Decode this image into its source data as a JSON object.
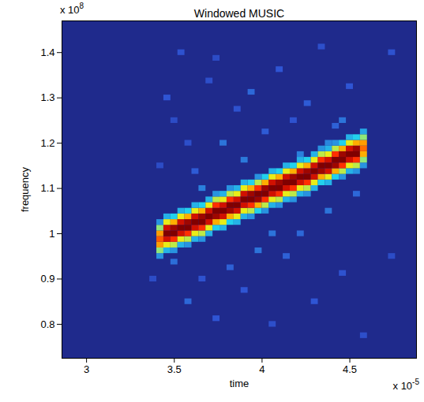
{
  "chart_data": {
    "type": "heatmap",
    "title": "Windowed MUSIC",
    "x_label": "time",
    "y_label": "frequency",
    "x_multiplier": {
      "text": "x 10",
      "superscript": "-5"
    },
    "y_multiplier": {
      "text": "x 10",
      "superscript": "8"
    },
    "xlim": [
      2.86,
      4.88
    ],
    "ylim": [
      0.725,
      1.47
    ],
    "xticks": [
      3,
      3.5,
      4,
      4.5
    ],
    "yticks": [
      0.8,
      0.9,
      1,
      1.1,
      1.2,
      1.3,
      1.4
    ],
    "heatmap": {
      "time_step": 0.04,
      "frequency_step": 0.0125,
      "zlim": [
        0,
        1
      ],
      "columns": [
        {
          "t": 3.46,
          "f_start": 1.3,
          "power": [
            0.15
          ]
        },
        {
          "t": 3.5,
          "f_start": 1.25,
          "power": [
            0.12
          ]
        },
        {
          "t": 3.54,
          "f_start": 1.4,
          "power": [
            0.14
          ]
        },
        {
          "t": 3.58,
          "f_start": 0.85,
          "power": [
            0.18
          ]
        },
        {
          "t": 3.62,
          "f_start": 1.1375,
          "power": [
            0.16
          ]
        },
        {
          "t": 3.66,
          "f_start": 0.9,
          "power": [
            0.14
          ]
        },
        {
          "t": 3.7,
          "f_start": 1.3375,
          "power": [
            0.13
          ]
        },
        {
          "t": 3.74,
          "f_start": 0.8125,
          "power": [
            0.15
          ]
        },
        {
          "t": 3.78,
          "f_start": 1.2,
          "power": [
            0.2
          ]
        },
        {
          "t": 3.82,
          "f_start": 0.925,
          "power": [
            0.17
          ]
        },
        {
          "t": 3.86,
          "f_start": 1.275,
          "power": [
            0.14
          ]
        },
        {
          "t": 3.9,
          "f_start": 0.875,
          "power": [
            0.15
          ]
        },
        {
          "t": 3.94,
          "f_start": 1.3125,
          "power": [
            0.18
          ]
        },
        {
          "t": 3.98,
          "f_start": 0.9625,
          "power": [
            0.2
          ]
        },
        {
          "t": 4.02,
          "f_start": 1.225,
          "power": [
            0.16
          ]
        },
        {
          "t": 4.06,
          "f_start": 0.8,
          "power": [
            0.13
          ]
        },
        {
          "t": 4.1,
          "f_start": 1.3625,
          "power": [
            0.15
          ]
        },
        {
          "t": 4.14,
          "f_start": 0.95,
          "power": [
            0.17
          ]
        },
        {
          "t": 4.18,
          "f_start": 1.25,
          "power": [
            0.14
          ]
        },
        {
          "t": 4.22,
          "f_start": 1.0,
          "power": [
            0.18
          ]
        },
        {
          "t": 4.26,
          "f_start": 1.2875,
          "power": [
            0.16
          ]
        },
        {
          "t": 4.3,
          "f_start": 0.85,
          "power": [
            0.15
          ]
        },
        {
          "t": 4.34,
          "f_start": 1.4125,
          "power": [
            0.13
          ]
        },
        {
          "t": 4.38,
          "f_start": 1.05,
          "power": [
            0.2
          ]
        },
        {
          "t": 4.42,
          "f_start": 1.2375,
          "power": [
            0.17
          ]
        },
        {
          "t": 4.46,
          "f_start": 0.9125,
          "power": [
            0.14
          ]
        },
        {
          "t": 4.5,
          "f_start": 1.325,
          "power": [
            0.15
          ]
        },
        {
          "t": 4.54,
          "f_start": 1.0875,
          "power": [
            0.18
          ]
        },
        {
          "t": 4.58,
          "f_start": 0.775,
          "power": [
            0.13
          ]
        },
        {
          "t": 3.5,
          "f_start": 0.9375,
          "power": [
            0.19
          ]
        },
        {
          "t": 3.58,
          "f_start": 1.2,
          "power": [
            0.13
          ]
        },
        {
          "t": 3.66,
          "f_start": 1.1,
          "power": [
            0.22
          ]
        },
        {
          "t": 3.74,
          "f_start": 1.3875,
          "power": [
            0.12
          ]
        },
        {
          "t": 3.9,
          "f_start": 1.1625,
          "power": [
            0.21
          ]
        },
        {
          "t": 4.06,
          "f_start": 1.0,
          "power": [
            0.2
          ]
        },
        {
          "t": 4.22,
          "f_start": 1.175,
          "power": [
            0.22
          ]
        },
        {
          "t": 4.38,
          "f_start": 1.2,
          "power": [
            0.23
          ]
        },
        {
          "t": 4.46,
          "f_start": 1.25,
          "power": [
            0.2
          ]
        },
        {
          "t": 3.42,
          "f_start": 1.15,
          "power": [
            0.12
          ]
        },
        {
          "t": 4.74,
          "f_start": 1.4,
          "power": [
            0.14
          ]
        },
        {
          "t": 4.74,
          "f_start": 0.95,
          "power": [
            0.12
          ]
        },
        {
          "t": 3.38,
          "f_start": 0.9,
          "power": [
            0.12
          ]
        },
        {
          "t": 3.42,
          "f_start": 0.95,
          "power": [
            0.25,
            0.5,
            0.72,
            0.8,
            0.72,
            0.5,
            0.25
          ]
        },
        {
          "t": 3.46,
          "f_start": 0.9625,
          "power": [
            0.3,
            0.6,
            0.92,
            1,
            0.92,
            0.6,
            0.3
          ]
        },
        {
          "t": 3.5,
          "f_start": 0.9625,
          "power": [
            0.25,
            0.55,
            0.85,
            1,
            0.97,
            0.7,
            0.35
          ]
        },
        {
          "t": 3.54,
          "f_start": 0.975,
          "power": [
            0.3,
            0.6,
            0.92,
            1,
            0.92,
            0.6,
            0.3
          ]
        },
        {
          "t": 3.58,
          "f_start": 0.975,
          "power": [
            0.25,
            0.55,
            0.85,
            1,
            0.97,
            0.7,
            0.35
          ]
        },
        {
          "t": 3.62,
          "f_start": 0.9875,
          "power": [
            0.3,
            0.6,
            0.92,
            1,
            0.92,
            0.6,
            0.3
          ]
        },
        {
          "t": 3.66,
          "f_start": 0.9875,
          "power": [
            0.25,
            0.55,
            0.85,
            1,
            0.97,
            0.7,
            0.35
          ]
        },
        {
          "t": 3.7,
          "f_start": 1.0,
          "power": [
            0.3,
            0.6,
            0.92,
            1,
            0.92,
            0.6,
            0.3
          ]
        },
        {
          "t": 3.74,
          "f_start": 1.0125,
          "power": [
            0.35,
            0.7,
            0.97,
            1,
            0.85,
            0.55,
            0.25
          ]
        },
        {
          "t": 3.78,
          "f_start": 1.0125,
          "power": [
            0.3,
            0.6,
            0.92,
            1,
            0.92,
            0.6,
            0.3
          ]
        },
        {
          "t": 3.82,
          "f_start": 1.025,
          "power": [
            0.35,
            0.7,
            0.97,
            1,
            0.85,
            0.55,
            0.25
          ]
        },
        {
          "t": 3.86,
          "f_start": 1.025,
          "power": [
            0.3,
            0.6,
            0.92,
            1,
            0.92,
            0.6,
            0.3
          ]
        },
        {
          "t": 3.9,
          "f_start": 1.0375,
          "power": [
            0.3,
            0.6,
            0.92,
            1,
            0.92,
            0.6,
            0.3
          ]
        },
        {
          "t": 3.94,
          "f_start": 1.0375,
          "power": [
            0.25,
            0.55,
            0.85,
            1,
            0.97,
            0.7,
            0.35
          ]
        },
        {
          "t": 3.98,
          "f_start": 1.05,
          "power": [
            0.35,
            0.7,
            0.97,
            1,
            0.85,
            0.55,
            0.25
          ]
        },
        {
          "t": 4.02,
          "f_start": 1.05,
          "power": [
            0.25,
            0.55,
            0.85,
            1,
            0.97,
            0.7,
            0.35
          ]
        },
        {
          "t": 4.06,
          "f_start": 1.0625,
          "power": [
            0.3,
            0.6,
            0.92,
            1,
            0.92,
            0.6,
            0.3
          ]
        },
        {
          "t": 4.1,
          "f_start": 1.0625,
          "power": [
            0.25,
            0.55,
            0.85,
            1,
            0.97,
            0.7,
            0.35
          ]
        },
        {
          "t": 4.14,
          "f_start": 1.075,
          "power": [
            0.3,
            0.6,
            0.92,
            1,
            0.92,
            0.6,
            0.3
          ]
        },
        {
          "t": 4.18,
          "f_start": 1.075,
          "power": [
            0.25,
            0.55,
            0.85,
            1,
            0.97,
            0.7,
            0.35
          ]
        },
        {
          "t": 4.22,
          "f_start": 1.0875,
          "power": [
            0.3,
            0.6,
            0.92,
            1,
            0.92,
            0.6,
            0.3
          ]
        },
        {
          "t": 4.26,
          "f_start": 1.0875,
          "power": [
            0.25,
            0.55,
            0.85,
            1,
            0.97,
            0.7,
            0.35
          ]
        },
        {
          "t": 4.3,
          "f_start": 1.1,
          "power": [
            0.3,
            0.6,
            0.92,
            1,
            0.92,
            0.6,
            0.3
          ]
        },
        {
          "t": 4.34,
          "f_start": 1.1125,
          "power": [
            0.35,
            0.7,
            0.97,
            1,
            0.85,
            0.55,
            0.25
          ]
        },
        {
          "t": 4.38,
          "f_start": 1.1125,
          "power": [
            0.3,
            0.6,
            0.92,
            1,
            0.92,
            0.6,
            0.3
          ]
        },
        {
          "t": 4.42,
          "f_start": 1.125,
          "power": [
            0.35,
            0.7,
            0.97,
            1,
            0.85,
            0.55,
            0.25
          ]
        },
        {
          "t": 4.46,
          "f_start": 1.125,
          "power": [
            0.25,
            0.55,
            0.85,
            1,
            0.97,
            0.7,
            0.35
          ]
        },
        {
          "t": 4.5,
          "f_start": 1.1375,
          "power": [
            0.3,
            0.6,
            0.92,
            1,
            0.92,
            0.6,
            0.3
          ]
        },
        {
          "t": 4.54,
          "f_start": 1.1375,
          "power": [
            0.25,
            0.55,
            0.85,
            1,
            0.97,
            0.7,
            0.35
          ]
        },
        {
          "t": 4.58,
          "f_start": 1.15,
          "power": [
            0.25,
            0.5,
            0.7,
            0.78,
            0.72,
            0.5,
            0.28
          ]
        }
      ]
    }
  }
}
